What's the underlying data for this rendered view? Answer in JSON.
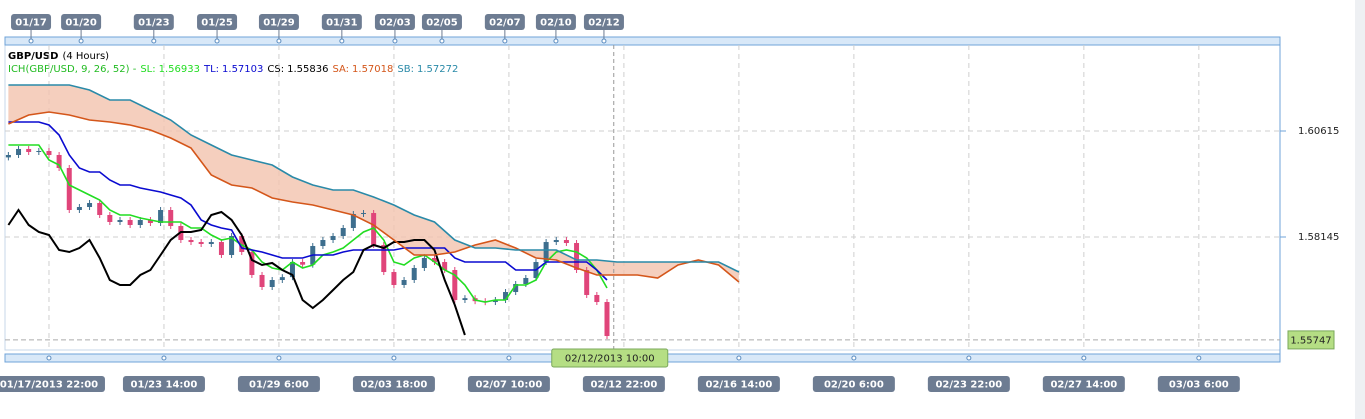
{
  "chart_data": {
    "type": "candlestick",
    "title": "GBP/USD",
    "subtitle": "(4 Hours)",
    "indicator": "ICH(GBP/USD, 9, 26, 52) -",
    "xlim": [
      -13,
      364
    ],
    "ylim": [
      1.55512,
      1.62619
    ],
    "yticks": [
      1.60615,
      1.58145
    ],
    "grid": true,
    "last_price": 1.55747,
    "last_price_color": "#b5de84",
    "crosshair": {
      "x": 167,
      "label": "02/12/2013 10:00"
    },
    "top_xticks": [
      {
        "value": -5.3,
        "label": "01/17"
      },
      {
        "value": 9.5,
        "label": "01/20"
      },
      {
        "value": 31,
        "label": "01/23"
      },
      {
        "value": 49.7,
        "label": "01/25"
      },
      {
        "value": 68,
        "label": "01/29"
      },
      {
        "value": 86.6,
        "label": "01/31"
      },
      {
        "value": 102.3,
        "label": "02/03"
      },
      {
        "value": 116.2,
        "label": "02/05"
      },
      {
        "value": 134.8,
        "label": "02/07"
      },
      {
        "value": 149.9,
        "label": "02/10"
      },
      {
        "value": 164.1,
        "label": "02/12"
      }
    ],
    "xticks": [
      {
        "value": 0,
        "label": "01/17/2013 22:00"
      },
      {
        "value": 34,
        "label": "01/23 14:00"
      },
      {
        "value": 68,
        "label": "01/29 6:00"
      },
      {
        "value": 102,
        "label": "02/03 18:00"
      },
      {
        "value": 136,
        "label": "02/07 10:00"
      },
      {
        "value": 170,
        "label": "02/12 22:00"
      },
      {
        "value": 204,
        "label": "02/16 14:00"
      },
      {
        "value": 238,
        "label": "02/20 6:00"
      },
      {
        "value": 272,
        "label": "02/23 22:00"
      },
      {
        "value": 306,
        "label": "02/27 14:00"
      },
      {
        "value": 340,
        "label": "03/03 6:00"
      }
    ],
    "candles": {
      "up_color": "#3d6e8e",
      "down_color": "#e0457a",
      "x": [
        -12,
        -9,
        -6,
        -3,
        0,
        3,
        6,
        9,
        12,
        15,
        18,
        21,
        24,
        27,
        30,
        33,
        36,
        39,
        42,
        45,
        48,
        51,
        54,
        57,
        60,
        63,
        66,
        69,
        72,
        75,
        78,
        81,
        84,
        87,
        90,
        93,
        96,
        99,
        102,
        105,
        108,
        111,
        114,
        117,
        120,
        123,
        126,
        129,
        132,
        135,
        138,
        141,
        144,
        147,
        150,
        153,
        156,
        159,
        162,
        165
      ],
      "open": [
        1.6,
        1.60056,
        1.60196,
        1.60126,
        1.60149,
        1.60056,
        1.59753,
        1.58774,
        1.58844,
        1.58937,
        1.58658,
        1.58495,
        1.58541,
        1.58425,
        1.58541,
        1.58471,
        1.58774,
        1.58401,
        1.58075,
        1.58028,
        1.57982,
        1.58028,
        1.57726,
        1.58168,
        1.57796,
        1.5726,
        1.5698,
        1.57143,
        1.5721,
        1.57562,
        1.575,
        1.57935,
        1.58075,
        1.58168,
        1.58355,
        1.58681,
        1.58704,
        1.57959,
        1.57329,
        1.57027,
        1.57143,
        1.57423,
        1.57656,
        1.57562,
        1.57376,
        1.56677,
        1.5672,
        1.5665,
        1.5663,
        1.56677,
        1.56863,
        1.5705,
        1.5719,
        1.57562,
        1.58028,
        1.58075,
        1.58005,
        1.57376,
        1.56794,
        1.5663
      ],
      "close": [
        1.60056,
        1.60196,
        1.60126,
        1.60149,
        1.60056,
        1.59753,
        1.58774,
        1.58844,
        1.58937,
        1.58658,
        1.58495,
        1.58541,
        1.58425,
        1.58541,
        1.58471,
        1.58774,
        1.58401,
        1.58075,
        1.58028,
        1.57982,
        1.58028,
        1.57726,
        1.58168,
        1.57796,
        1.5726,
        1.5698,
        1.57143,
        1.5721,
        1.57562,
        1.575,
        1.57935,
        1.58075,
        1.58168,
        1.58355,
        1.58681,
        1.58704,
        1.57959,
        1.57329,
        1.57027,
        1.57143,
        1.57423,
        1.57656,
        1.57562,
        1.57376,
        1.56677,
        1.5672,
        1.5665,
        1.5663,
        1.56677,
        1.56863,
        1.5705,
        1.5719,
        1.57562,
        1.58028,
        1.58075,
        1.58005,
        1.57376,
        1.56794,
        1.5663,
        1.55838
      ]
    },
    "cloud_color": "#f3c3ae",
    "series": [
      {
        "name": "SL:",
        "last": 1.56933,
        "color": "#22dd22",
        "x": [
          -12,
          -9,
          -6,
          -3,
          0,
          3,
          6,
          9,
          12,
          15,
          18,
          21,
          24,
          27,
          30,
          33,
          36,
          39,
          42,
          45,
          48,
          51,
          54,
          57,
          60,
          63,
          66,
          69,
          72,
          75,
          78,
          81,
          84,
          87,
          90,
          93,
          96,
          99,
          102,
          105,
          108,
          111,
          114,
          117,
          120,
          123,
          126,
          129,
          132,
          135,
          138,
          141,
          144,
          147,
          150,
          153,
          156,
          159,
          162,
          165
        ],
        "values": [
          1.60289,
          1.60289,
          1.60289,
          1.60289,
          1.59939,
          1.59823,
          1.59357,
          1.5924,
          1.59124,
          1.59007,
          1.58774,
          1.58658,
          1.58658,
          1.58588,
          1.58541,
          1.58495,
          1.58495,
          1.58495,
          1.58355,
          1.58355,
          1.58192,
          1.58075,
          1.58122,
          1.57959,
          1.57842,
          1.57562,
          1.57423,
          1.57376,
          1.57562,
          1.57423,
          1.57493,
          1.57726,
          1.57796,
          1.57889,
          1.58075,
          1.58262,
          1.58355,
          1.58075,
          1.57562,
          1.57493,
          1.57656,
          1.57726,
          1.57562,
          1.57376,
          1.5726,
          1.57027,
          1.56677,
          1.5663,
          1.56677,
          1.56677,
          1.57027,
          1.57027,
          1.57143,
          1.57562,
          1.57796,
          1.57842,
          1.57796,
          1.57656,
          1.57376,
          1.56957
        ]
      },
      {
        "name": "TL:",
        "last": 1.57103,
        "color": "#0a0ad0",
        "x": [
          -12,
          -9,
          -6,
          -3,
          0,
          3,
          6,
          9,
          12,
          15,
          18,
          21,
          24,
          27,
          30,
          33,
          36,
          39,
          42,
          45,
          48,
          51,
          54,
          57,
          60,
          63,
          66,
          69,
          72,
          75,
          78,
          81,
          84,
          87,
          90,
          93,
          96,
          99,
          102,
          105,
          108,
          111,
          114,
          117,
          120,
          123,
          126,
          129,
          132,
          135,
          138,
          141,
          144,
          147,
          150,
          153,
          156,
          159,
          162,
          165
        ],
        "values": [
          1.60825,
          1.60825,
          1.60825,
          1.60825,
          1.60755,
          1.60522,
          1.60056,
          1.59753,
          1.5966,
          1.5966,
          1.59473,
          1.59357,
          1.59357,
          1.59287,
          1.5924,
          1.59194,
          1.59124,
          1.59054,
          1.58891,
          1.58541,
          1.58425,
          1.58355,
          1.58308,
          1.57889,
          1.57842,
          1.57796,
          1.57726,
          1.57656,
          1.57656,
          1.57656,
          1.57726,
          1.57726,
          1.57726,
          1.57796,
          1.57842,
          1.57842,
          1.57842,
          1.57842,
          1.57842,
          1.57889,
          1.57889,
          1.57889,
          1.57889,
          1.57889,
          1.57656,
          1.57562,
          1.57562,
          1.57562,
          1.57562,
          1.57562,
          1.57376,
          1.57376,
          1.57376,
          1.57562,
          1.57562,
          1.57562,
          1.57562,
          1.57562,
          1.57376,
          1.57143
        ]
      },
      {
        "name": "CS:",
        "last": 1.55836,
        "color": "#000000",
        "x": [
          -12,
          -9,
          -6,
          -3,
          0,
          3,
          6,
          9,
          12,
          15,
          18,
          21,
          24,
          27,
          30,
          33,
          36,
          39,
          42,
          45,
          48,
          51,
          54,
          57,
          60,
          63,
          66,
          69,
          72,
          75,
          78,
          81,
          84,
          87,
          90,
          93,
          96,
          99,
          102,
          105,
          108,
          111,
          114,
          117,
          120,
          123
        ],
        "values": [
          1.58425,
          1.58774,
          1.58425,
          1.58262,
          1.58192,
          1.57842,
          1.57796,
          1.57889,
          1.58075,
          1.57656,
          1.57143,
          1.57027,
          1.57027,
          1.5726,
          1.57376,
          1.57726,
          1.58075,
          1.58262,
          1.58262,
          1.58308,
          1.58658,
          1.58728,
          1.58541,
          1.58192,
          1.57609,
          1.57493,
          1.57539,
          1.57376,
          1.5726,
          1.56677,
          1.56491,
          1.56677,
          1.5691,
          1.57143,
          1.57329,
          1.57842,
          1.57959,
          1.57889,
          1.58028,
          1.58028,
          1.58075,
          1.58075,
          1.57842,
          1.57143,
          1.56561,
          1.55862
        ]
      },
      {
        "name": "SA:",
        "last": 1.57018,
        "color": "#d4561a",
        "x": [
          -12,
          -6,
          0,
          6,
          12,
          18,
          24,
          30,
          36,
          42,
          48,
          54,
          60,
          66,
          72,
          78,
          84,
          90,
          96,
          102,
          108,
          114,
          120,
          126,
          132,
          138,
          144,
          150,
          156,
          162,
          168,
          174,
          180,
          186,
          192,
          198,
          204
        ],
        "values": [
          1.60778,
          1.60988,
          1.61058,
          1.60988,
          1.60871,
          1.60825,
          1.60755,
          1.60638,
          1.60452,
          1.60219,
          1.5959,
          1.59357,
          1.59287,
          1.59054,
          1.58961,
          1.58891,
          1.58774,
          1.58658,
          1.58425,
          1.58075,
          1.57726,
          1.57726,
          1.57796,
          1.57959,
          1.58075,
          1.57889,
          1.57656,
          1.57609,
          1.57423,
          1.5726,
          1.5726,
          1.5726,
          1.5719,
          1.57493,
          1.57609,
          1.57493,
          1.57097
        ]
      },
      {
        "name": "SB:",
        "last": 1.57272,
        "color": "#2a8aa8",
        "x": [
          -12,
          -6,
          0,
          6,
          12,
          18,
          24,
          30,
          36,
          42,
          48,
          54,
          60,
          66,
          72,
          78,
          84,
          90,
          96,
          102,
          108,
          114,
          120,
          126,
          132,
          138,
          144,
          150,
          156,
          162,
          168,
          174,
          180,
          186,
          192,
          198,
          204
        ],
        "values": [
          1.61687,
          1.61687,
          1.61687,
          1.61687,
          1.6157,
          1.61337,
          1.61337,
          1.61104,
          1.60871,
          1.60522,
          1.60289,
          1.60056,
          1.59939,
          1.59823,
          1.59543,
          1.59357,
          1.5924,
          1.5924,
          1.59077,
          1.58891,
          1.58658,
          1.58495,
          1.58075,
          1.57889,
          1.57889,
          1.57842,
          1.57842,
          1.57842,
          1.57609,
          1.57609,
          1.57562,
          1.57562,
          1.57562,
          1.57562,
          1.57562,
          1.57562,
          1.57329
        ]
      }
    ]
  }
}
